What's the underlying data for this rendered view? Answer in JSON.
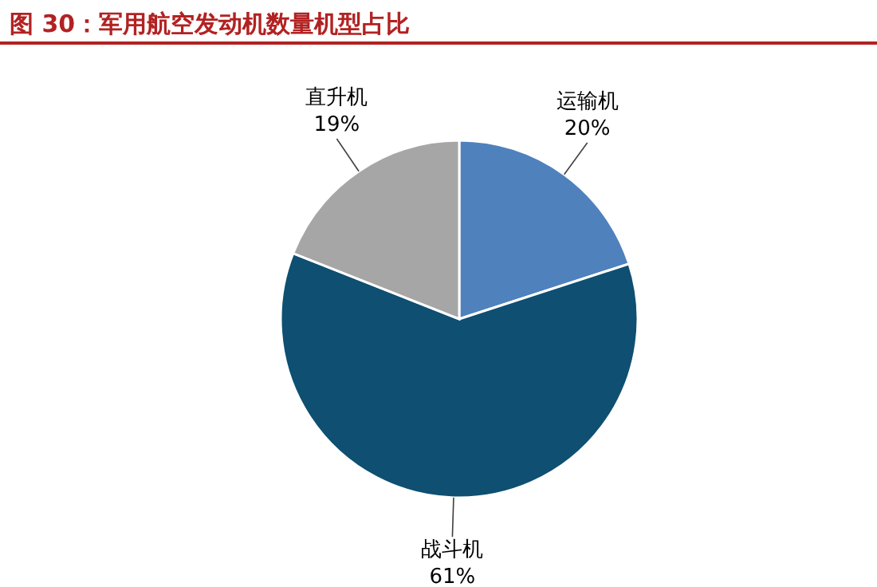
{
  "chart_data": {
    "type": "pie",
    "title": "图 30：军用航空发动机数量机型占比",
    "categories": [
      "运输机",
      "战斗机",
      "直升机"
    ],
    "values": [
      20,
      61,
      19
    ],
    "value_labels": [
      "20%",
      "61%",
      "19%"
    ],
    "colors": [
      "#4f81bd",
      "#0e4f72",
      "#a6a6a6"
    ],
    "legend": false
  }
}
